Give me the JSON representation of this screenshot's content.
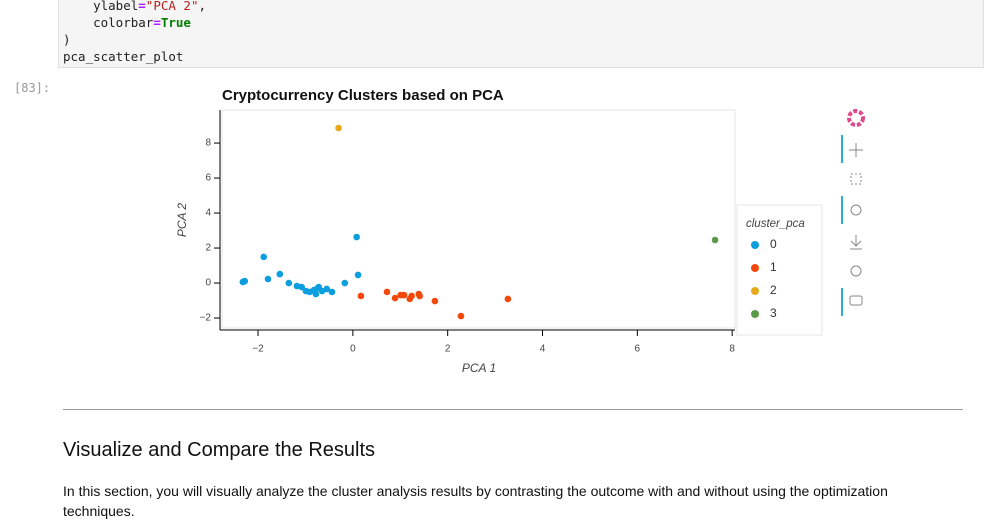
{
  "code": {
    "lines": [
      [
        "    ylabel",
        "=",
        "\"PCA 2\"",
        ","
      ],
      [
        "    colorbar",
        "=",
        "True"
      ],
      [
        ")"
      ],
      [
        "pca_scatter_plot"
      ]
    ]
  },
  "prompt": "[83]:",
  "chart_data": {
    "type": "scatter",
    "title": "Cryptocurrency Clusters based on PCA",
    "x_label": "PCA 1",
    "y_label": "PCA 2",
    "legend_title": "cluster_pca",
    "legend": "right",
    "xlim": [
      -2.76,
      8.06
    ],
    "ylim": [
      -2.57,
      9.89
    ],
    "xticks": [
      {
        "value": -2,
        "label": "−2"
      },
      0,
      2,
      4,
      6,
      8
    ],
    "yticks": [
      {
        "value": -2,
        "label": "−2"
      },
      0,
      2,
      4,
      6,
      8
    ],
    "series": [
      {
        "name": "0",
        "color": "#0a9ede",
        "x": [
          -2.32,
          -2.28,
          -1.88,
          -1.79,
          -1.54,
          -1.35,
          -1.18,
          -1.08,
          -0.99,
          -0.91,
          -0.82,
          -0.74,
          -0.72,
          -0.65,
          -0.55,
          -0.44,
          -0.17,
          0.08,
          0.11,
          -0.78
        ],
        "values": [
          0.06,
          0.11,
          1.49,
          0.23,
          0.51,
          0.0,
          -0.17,
          -0.23,
          -0.46,
          -0.51,
          -0.4,
          -0.29,
          -0.23,
          -0.46,
          -0.34,
          -0.51,
          0.0,
          2.63,
          0.46,
          -0.63
        ]
      },
      {
        "name": "1",
        "color": "#f2480c",
        "x": [
          0.17,
          0.72,
          0.89,
          1.01,
          1.08,
          1.2,
          1.24,
          1.39,
          1.41,
          1.73,
          2.28,
          3.27
        ],
        "values": [
          -0.74,
          -0.51,
          -0.86,
          -0.69,
          -0.69,
          -0.91,
          -0.74,
          -0.63,
          -0.74,
          -1.03,
          -1.89,
          -0.91
        ]
      },
      {
        "name": "2",
        "color": "#e6a91a",
        "x": [
          -0.3
        ],
        "values": [
          8.86
        ]
      },
      {
        "name": "3",
        "color": "#5a9a48",
        "x": [
          7.64
        ],
        "values": [
          2.46
        ]
      }
    ]
  },
  "section": {
    "heading": "Visualize and Compare the Results",
    "paragraph": "In this section, you will visually analyze the cluster analysis results by contrasting the outcome with and without using the optimization techniques."
  }
}
